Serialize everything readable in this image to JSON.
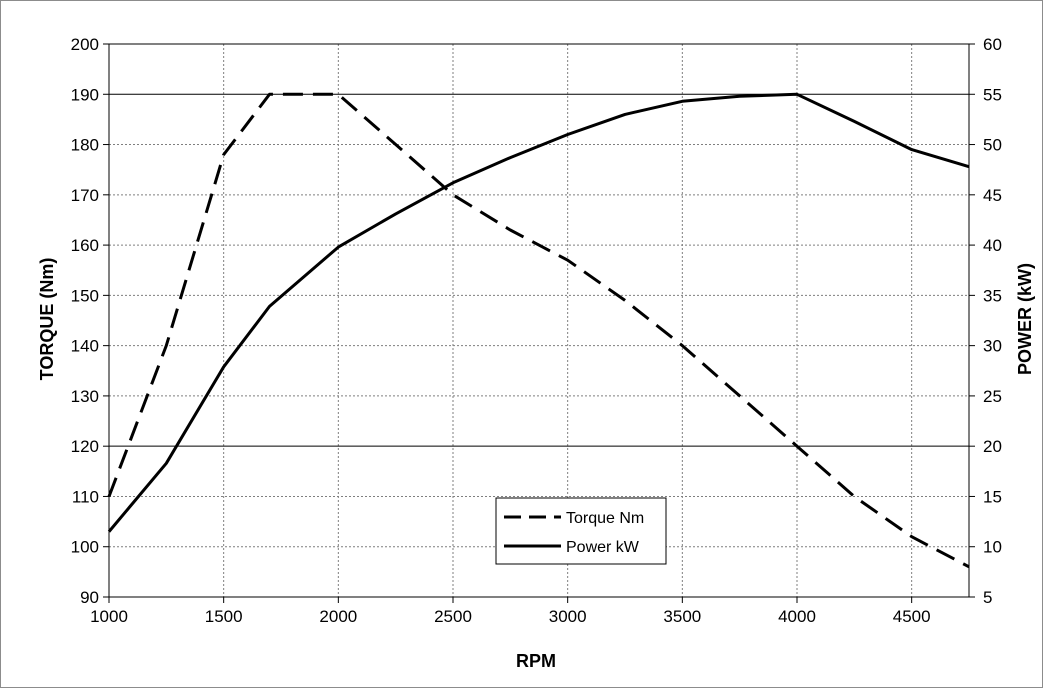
{
  "chart_data": {
    "type": "line",
    "xlabel": "RPM",
    "ylabel_left": "TORQUE (Nm)",
    "ylabel_right": "POWER (kW)",
    "xlim": [
      1000,
      4750
    ],
    "ylim_left": [
      90,
      200
    ],
    "ylim_right": [
      5,
      60
    ],
    "x_ticks": [
      1000,
      1500,
      2000,
      2500,
      3000,
      3500,
      4000,
      4500
    ],
    "y_left_ticks": [
      90,
      100,
      110,
      120,
      130,
      140,
      150,
      160,
      170,
      180,
      190,
      200
    ],
    "y_right_ticks": [
      5,
      10,
      15,
      20,
      25,
      30,
      35,
      40,
      45,
      50,
      55,
      60
    ],
    "grid": true,
    "legend_position": "bottom-center",
    "series": [
      {
        "name": "Torque Nm",
        "axis": "left",
        "style": "dashed",
        "points": [
          [
            1000,
            110
          ],
          [
            1250,
            140
          ],
          [
            1500,
            178
          ],
          [
            1700,
            190
          ],
          [
            2000,
            190
          ],
          [
            2250,
            180
          ],
          [
            2500,
            170
          ],
          [
            2750,
            163
          ],
          [
            3000,
            157
          ],
          [
            3250,
            149
          ],
          [
            3500,
            140
          ],
          [
            3750,
            130
          ],
          [
            4000,
            120
          ],
          [
            4250,
            110
          ],
          [
            4500,
            102
          ],
          [
            4750,
            96
          ]
        ]
      },
      {
        "name": "Power kW",
        "axis": "right",
        "style": "solid",
        "points": [
          [
            1000,
            11.5
          ],
          [
            1250,
            18.3
          ],
          [
            1500,
            27.9
          ],
          [
            1700,
            33.9
          ],
          [
            2000,
            39.8
          ],
          [
            2250,
            43.1
          ],
          [
            2500,
            46.2
          ],
          [
            2750,
            48.7
          ],
          [
            3000,
            51
          ],
          [
            3250,
            53
          ],
          [
            3500,
            54.3
          ],
          [
            3750,
            54.8
          ],
          [
            4000,
            55
          ],
          [
            4250,
            52.3
          ],
          [
            4500,
            49.5
          ],
          [
            4750,
            47.8
          ]
        ]
      }
    ],
    "colors": {
      "lines": "#000000",
      "grid": "#7f7f7f",
      "major_grid": "#000000"
    }
  }
}
